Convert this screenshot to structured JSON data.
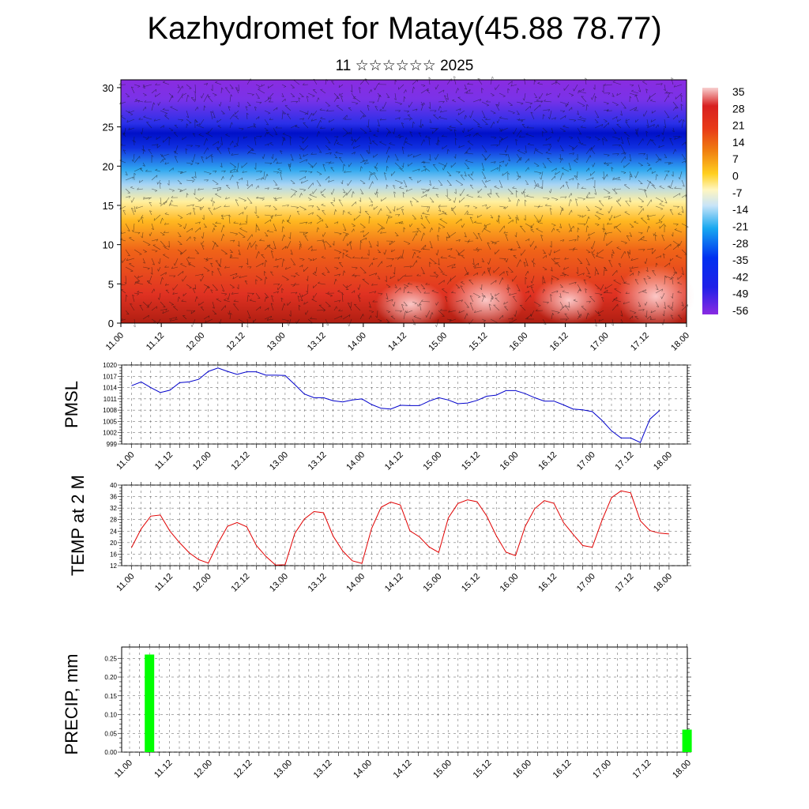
{
  "title": "Kazhydromet for Matay(45.88 78.77)",
  "subtitle": "11 ☆☆☆☆☆☆ 2025",
  "time_labels": [
    "11.00",
    "11.12",
    "12.00",
    "12.12",
    "13.00",
    "13.12",
    "14.00",
    "14.12",
    "15.00",
    "15.12",
    "16.00",
    "16.12",
    "17.00",
    "17.12",
    "18.00"
  ],
  "chart_data": [
    {
      "type": "heatmap",
      "description_units": "temperature colour field with wind barbs",
      "title": "",
      "xlabel": "",
      "ylabel": "",
      "x": [
        "11.00",
        "11.12",
        "12.00",
        "12.12",
        "13.00",
        "13.12",
        "14.00",
        "14.12",
        "15.00",
        "15.12",
        "16.00",
        "16.12",
        "17.00",
        "17.12",
        "18.00"
      ],
      "ylim": [
        0,
        31
      ],
      "yticks": [
        0,
        5,
        10,
        15,
        20,
        25,
        30
      ],
      "colorbar": {
        "labels": [
          "35",
          "28",
          "21",
          "14",
          "7",
          "0",
          "-7",
          "-14",
          "-21",
          "-28",
          "-35",
          "-42",
          "-49",
          "-56"
        ],
        "colors": [
          "#f4c6c6",
          "#e03024",
          "#f06a10",
          "#ffcc10",
          "#fff2b0",
          "#9ec8ee",
          "#18a0f0",
          "#0028e0",
          "#8a2be2"
        ]
      }
    },
    {
      "type": "line",
      "ylabel": "PMSL",
      "color": "#0000cc",
      "ylim": [
        999,
        1020
      ],
      "yticks": [
        999,
        1002,
        1005,
        1008,
        1011,
        1014,
        1017,
        1020
      ],
      "x_start": "11.00",
      "step_hours": 3,
      "values": [
        1014.5,
        1015.5,
        1014,
        1012.7,
        1013.3,
        1015.3,
        1015.5,
        1016.2,
        1018.3,
        1019.2,
        1018.3,
        1017.5,
        1018.2,
        1018.2,
        1017.3,
        1017.3,
        1017.2,
        1014.8,
        1012.3,
        1011.3,
        1011.3,
        1010.5,
        1010.2,
        1010.7,
        1011,
        1009.5,
        1008.5,
        1008.3,
        1009.3,
        1009.2,
        1009.2,
        1010.4,
        1011.3,
        1010.7,
        1009.7,
        1009.9,
        1010.6,
        1011.7,
        1012,
        1013.2,
        1013.2,
        1012.4,
        1011.3,
        1010.4,
        1010.4,
        1009.4,
        1008.3,
        1008.1,
        1007.6,
        1005.3,
        1002.5,
        1000.6,
        1000.6,
        999.4,
        1005.6,
        1007.9
      ]
    },
    {
      "type": "line",
      "ylabel": "TEMP at 2 M",
      "color": "#e00000",
      "ylim": [
        12,
        40
      ],
      "yticks": [
        12,
        16,
        20,
        24,
        28,
        32,
        36,
        40
      ],
      "x_start": "11.00",
      "step_hours": 3,
      "values": [
        18.3,
        24.8,
        29.2,
        29.6,
        24,
        20,
        16.5,
        14.1,
        12.9,
        19.8,
        25.7,
        27,
        25.5,
        19,
        15.2,
        12.2,
        12.3,
        23.2,
        28.2,
        30.8,
        30.4,
        22.3,
        17.1,
        13.7,
        12.8,
        24.9,
        32.3,
        34.1,
        33.1,
        24.1,
        22,
        18.5,
        16.6,
        28.6,
        33.6,
        34.9,
        34.2,
        29.3,
        22.4,
        16.7,
        15.5,
        25.6,
        31.8,
        34.6,
        33.7,
        27,
        22.9,
        19,
        18.4,
        27.7,
        35.6,
        38,
        37.3,
        27.6,
        24.2,
        23.3,
        23
      ]
    },
    {
      "type": "bar",
      "ylabel": "PRECIP, mm",
      "color": "#00ff00",
      "ylim": [
        0,
        0.28
      ],
      "yticks": [
        "0.00",
        "0.05",
        "0.10",
        "0.15",
        "0.20",
        "0.25"
      ],
      "bars": [
        {
          "x": "11.06",
          "value": 0.26
        },
        {
          "x": "18.00",
          "value": 0.06
        }
      ]
    }
  ]
}
